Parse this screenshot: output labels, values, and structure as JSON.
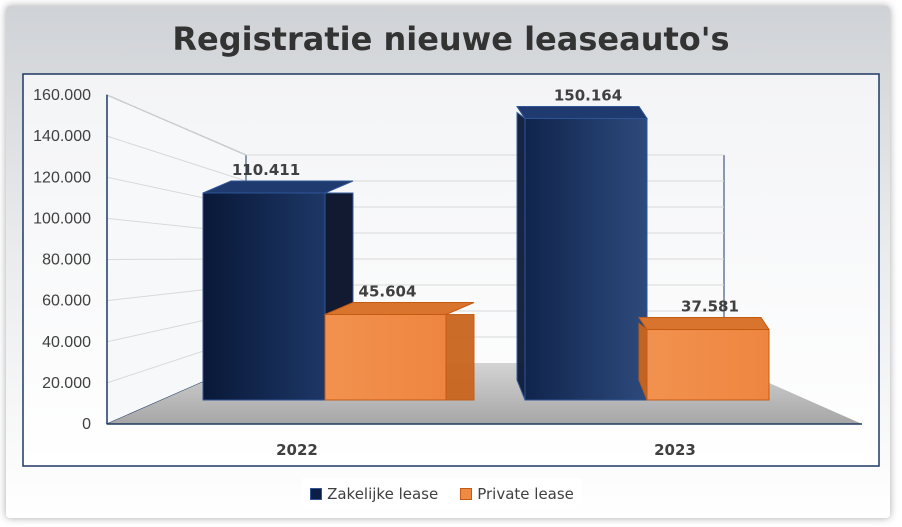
{
  "chart_data": {
    "type": "bar",
    "title": "Registratie nieuwe leaseauto's",
    "categories": [
      "2022",
      "2023"
    ],
    "series": [
      {
        "name": "Zakelijke lease",
        "values": [
          110411,
          150164
        ],
        "labels": [
          "110.411",
          "150.164"
        ],
        "color": "#0c1e45"
      },
      {
        "name": "Private lease",
        "values": [
          45604,
          37581
        ],
        "labels": [
          "45.604",
          "37.581"
        ],
        "color": "#ef8a44"
      }
    ],
    "ylim": [
      0,
      160000
    ],
    "yticks": [
      0,
      20000,
      40000,
      60000,
      80000,
      100000,
      120000,
      140000,
      160000
    ],
    "ytick_labels": [
      "0",
      "20.000",
      "40.000",
      "60.000",
      "80.000",
      "100.000",
      "120.000",
      "140.000",
      "160.000"
    ],
    "grid": true,
    "legend_position": "bottom",
    "style": "3d-clustered-column"
  }
}
